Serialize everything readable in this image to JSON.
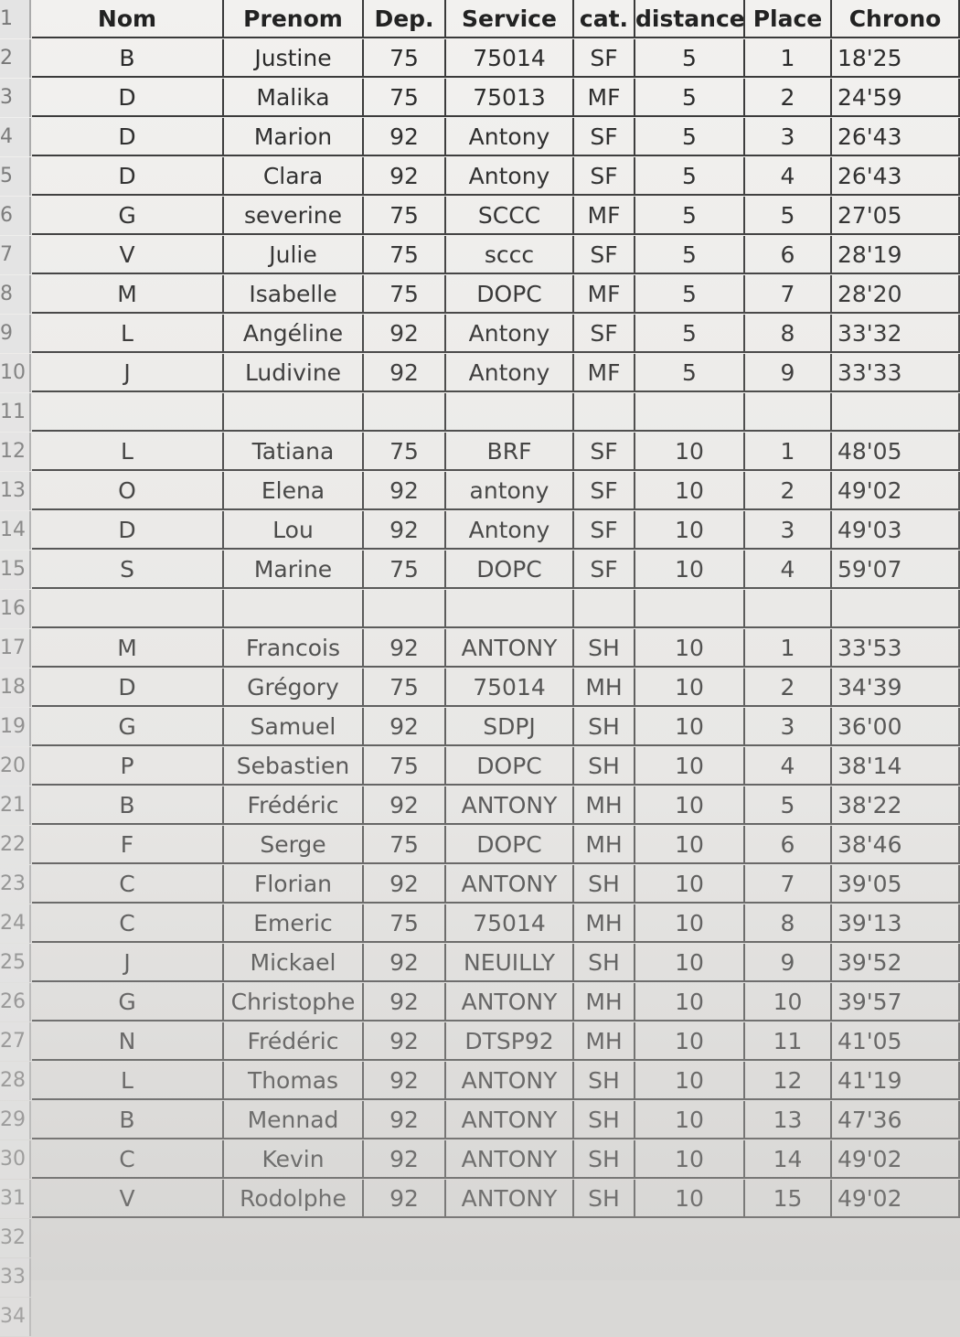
{
  "columns": [
    "Nom",
    "Prenom",
    "Dep.",
    "Service",
    "cat.",
    "distance",
    "Place",
    "Chrono"
  ],
  "header_row": "1",
  "rows": [
    {
      "row": "2",
      "cells": [
        "B",
        "Justine",
        "75",
        "75014",
        "SF",
        "5",
        "1",
        "18'25"
      ]
    },
    {
      "row": "3",
      "cells": [
        "D",
        "Malika",
        "75",
        "75013",
        "MF",
        "5",
        "2",
        "24'59"
      ]
    },
    {
      "row": "4",
      "cells": [
        "D",
        "Marion",
        "92",
        "Antony",
        "SF",
        "5",
        "3",
        "26'43"
      ]
    },
    {
      "row": "5",
      "cells": [
        "D",
        "Clara",
        "92",
        "Antony",
        "SF",
        "5",
        "4",
        "26'43"
      ]
    },
    {
      "row": "6",
      "cells": [
        "G",
        "severine",
        "75",
        "SCCC",
        "MF",
        "5",
        "5",
        "27'05"
      ]
    },
    {
      "row": "7",
      "cells": [
        "V",
        "Julie",
        "75",
        "sccc",
        "SF",
        "5",
        "6",
        "28'19"
      ]
    },
    {
      "row": "8",
      "cells": [
        "M",
        "Isabelle",
        "75",
        "DOPC",
        "MF",
        "5",
        "7",
        "28'20"
      ]
    },
    {
      "row": "9",
      "cells": [
        "L",
        "Angéline",
        "92",
        "Antony",
        "SF",
        "5",
        "8",
        "33'32"
      ]
    },
    {
      "row": "10",
      "cells": [
        "J",
        "Ludivine",
        "92",
        "Antony",
        "MF",
        "5",
        "9",
        "33'33"
      ]
    },
    {
      "row": "11"
    },
    {
      "row": "12",
      "cells": [
        "L",
        "Tatiana",
        "75",
        "BRF",
        "SF",
        "10",
        "1",
        "48'05"
      ]
    },
    {
      "row": "13",
      "cells": [
        "O",
        "Elena",
        "92",
        "antony",
        "SF",
        "10",
        "2",
        "49'02"
      ]
    },
    {
      "row": "14",
      "cells": [
        "D",
        "Lou",
        "92",
        "Antony",
        "SF",
        "10",
        "3",
        "49'03"
      ]
    },
    {
      "row": "15",
      "cells": [
        "S",
        "Marine",
        "75",
        "DOPC",
        "SF",
        "10",
        "4",
        "59'07"
      ]
    },
    {
      "row": "16"
    },
    {
      "row": "17",
      "cells": [
        "M",
        "Francois",
        "92",
        "ANTONY",
        "SH",
        "10",
        "1",
        "33'53"
      ]
    },
    {
      "row": "18",
      "cells": [
        "D",
        "Grégory",
        "75",
        "75014",
        "MH",
        "10",
        "2",
        "34'39"
      ]
    },
    {
      "row": "19",
      "cells": [
        "G",
        "Samuel",
        "92",
        "SDPJ",
        "SH",
        "10",
        "3",
        "36'00"
      ]
    },
    {
      "row": "20",
      "cells": [
        "P",
        "Sebastien",
        "75",
        "DOPC",
        "SH",
        "10",
        "4",
        "38'14"
      ]
    },
    {
      "row": "21",
      "cells": [
        "B",
        "Frédéric",
        "92",
        "ANTONY",
        "MH",
        "10",
        "5",
        "38'22"
      ]
    },
    {
      "row": "22",
      "cells": [
        "F",
        "Serge",
        "75",
        "DOPC",
        "MH",
        "10",
        "6",
        "38'46"
      ]
    },
    {
      "row": "23",
      "cells": [
        "C",
        "Florian",
        "92",
        "ANTONY",
        "SH",
        "10",
        "7",
        "39'05"
      ]
    },
    {
      "row": "24",
      "cells": [
        "C",
        "Emeric",
        "75",
        "75014",
        "MH",
        "10",
        "8",
        "39'13"
      ]
    },
    {
      "row": "25",
      "cells": [
        "J",
        "Mickael",
        "92",
        "NEUILLY",
        "SH",
        "10",
        "9",
        "39'52"
      ]
    },
    {
      "row": "26",
      "cells": [
        "G",
        "Christophe",
        "92",
        "ANTONY",
        "MH",
        "10",
        "10",
        "39'57"
      ]
    },
    {
      "row": "27",
      "cells": [
        "N",
        "Frédéric",
        "92",
        "DTSP92",
        "MH",
        "10",
        "11",
        "41'05"
      ]
    },
    {
      "row": "28",
      "cells": [
        "L",
        "Thomas",
        "92",
        "ANTONY",
        "SH",
        "10",
        "12",
        "41'19"
      ]
    },
    {
      "row": "29",
      "cells": [
        "B",
        "Mennad",
        "92",
        "ANTONY",
        "SH",
        "10",
        "13",
        "47'36"
      ]
    },
    {
      "row": "30",
      "cells": [
        "C",
        "Kevin",
        "92",
        "ANTONY",
        "SH",
        "10",
        "14",
        "49'02"
      ]
    },
    {
      "row": "31",
      "cells": [
        "V",
        "Rodolphe",
        "92",
        "ANTONY",
        "SH",
        "10",
        "15",
        "49'02"
      ]
    },
    {
      "row": "32"
    },
    {
      "row": "33"
    },
    {
      "row": "34"
    }
  ]
}
